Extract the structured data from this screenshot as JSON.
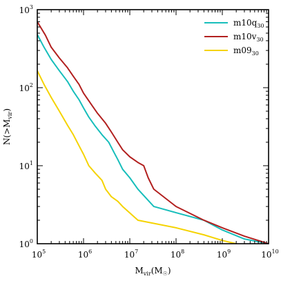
{
  "chart_data": {
    "type": "line",
    "title": "",
    "xlabel": "M_vir(M_☉)",
    "ylabel": "N(>M_vir)",
    "xscale": "log",
    "yscale": "log",
    "xlim": [
      100000,
      10000000000
    ],
    "ylim": [
      1,
      1000
    ],
    "x_ticks": [
      {
        "value": 100000,
        "base": "10",
        "exp": "5"
      },
      {
        "value": 1000000,
        "base": "10",
        "exp": "6"
      },
      {
        "value": 10000000,
        "base": "10",
        "exp": "7"
      },
      {
        "value": 100000000,
        "base": "10",
        "exp": "8"
      },
      {
        "value": 1000000000,
        "base": "10",
        "exp": "9"
      },
      {
        "value": 10000000000,
        "base": "10",
        "exp": "10"
      }
    ],
    "y_ticks": [
      {
        "value": 1,
        "base": "10",
        "exp": "0"
      },
      {
        "value": 10,
        "base": "10",
        "exp": "1"
      },
      {
        "value": 100,
        "base": "10",
        "exp": "2"
      },
      {
        "value": 1000,
        "base": "10",
        "exp": "3"
      }
    ],
    "grid": false,
    "legend_position": "top-right",
    "series": [
      {
        "name": "m10q30",
        "name_base": "m10q",
        "name_sub": "30",
        "color": "#17bebb",
        "points": [
          [
            100000,
            480
          ],
          [
            140000,
            330
          ],
          [
            200000,
            230
          ],
          [
            300000,
            165
          ],
          [
            450000,
            120
          ],
          [
            600000,
            90
          ],
          [
            800000,
            70
          ],
          [
            1000000,
            55
          ],
          [
            1300000,
            42
          ],
          [
            1800000,
            32
          ],
          [
            2500000,
            25
          ],
          [
            3500000,
            20
          ],
          [
            4500000,
            15
          ],
          [
            5500000,
            12
          ],
          [
            7000000,
            9
          ],
          [
            10000000,
            7
          ],
          [
            15000000,
            5
          ],
          [
            33000000,
            3
          ],
          [
            100000000,
            2.5
          ],
          [
            400000000,
            2
          ],
          [
            1000000000,
            1.5
          ],
          [
            3000000000,
            1.15
          ],
          [
            10000000000,
            1
          ]
        ]
      },
      {
        "name": "m10v30",
        "name_base": "m10v",
        "name_sub": "30",
        "color": "#b2201f",
        "points": [
          [
            100000,
            700
          ],
          [
            150000,
            470
          ],
          [
            200000,
            330
          ],
          [
            300000,
            240
          ],
          [
            450000,
            180
          ],
          [
            600000,
            140
          ],
          [
            800000,
            110
          ],
          [
            1000000,
            85
          ],
          [
            1500000,
            60
          ],
          [
            2000000,
            47
          ],
          [
            3000000,
            35
          ],
          [
            4000000,
            27
          ],
          [
            5500000,
            20
          ],
          [
            7000000,
            16
          ],
          [
            10000000,
            13
          ],
          [
            15000000,
            11
          ],
          [
            20000000,
            10
          ],
          [
            25000000,
            7
          ],
          [
            33000000,
            5
          ],
          [
            100000000,
            3
          ],
          [
            400000000,
            2
          ],
          [
            1000000000,
            1.6
          ],
          [
            3000000000,
            1.25
          ],
          [
            10000000000,
            1
          ]
        ]
      },
      {
        "name": "m0930",
        "name_base": "m09",
        "name_sub": "30",
        "color": "#f5d300",
        "points": [
          [
            100000,
            165
          ],
          [
            140000,
            110
          ],
          [
            200000,
            75
          ],
          [
            300000,
            50
          ],
          [
            450000,
            33
          ],
          [
            600000,
            25
          ],
          [
            800000,
            18
          ],
          [
            1000000,
            14
          ],
          [
            1300000,
            10
          ],
          [
            1800000,
            8
          ],
          [
            2500000,
            6.5
          ],
          [
            3000000,
            5
          ],
          [
            4000000,
            4
          ],
          [
            5500000,
            3.5
          ],
          [
            7000000,
            3
          ],
          [
            15000000,
            2
          ],
          [
            100000000,
            1.6
          ],
          [
            400000000,
            1.3
          ],
          [
            1000000000,
            1.1
          ],
          [
            2000000000,
            1
          ]
        ]
      }
    ]
  }
}
